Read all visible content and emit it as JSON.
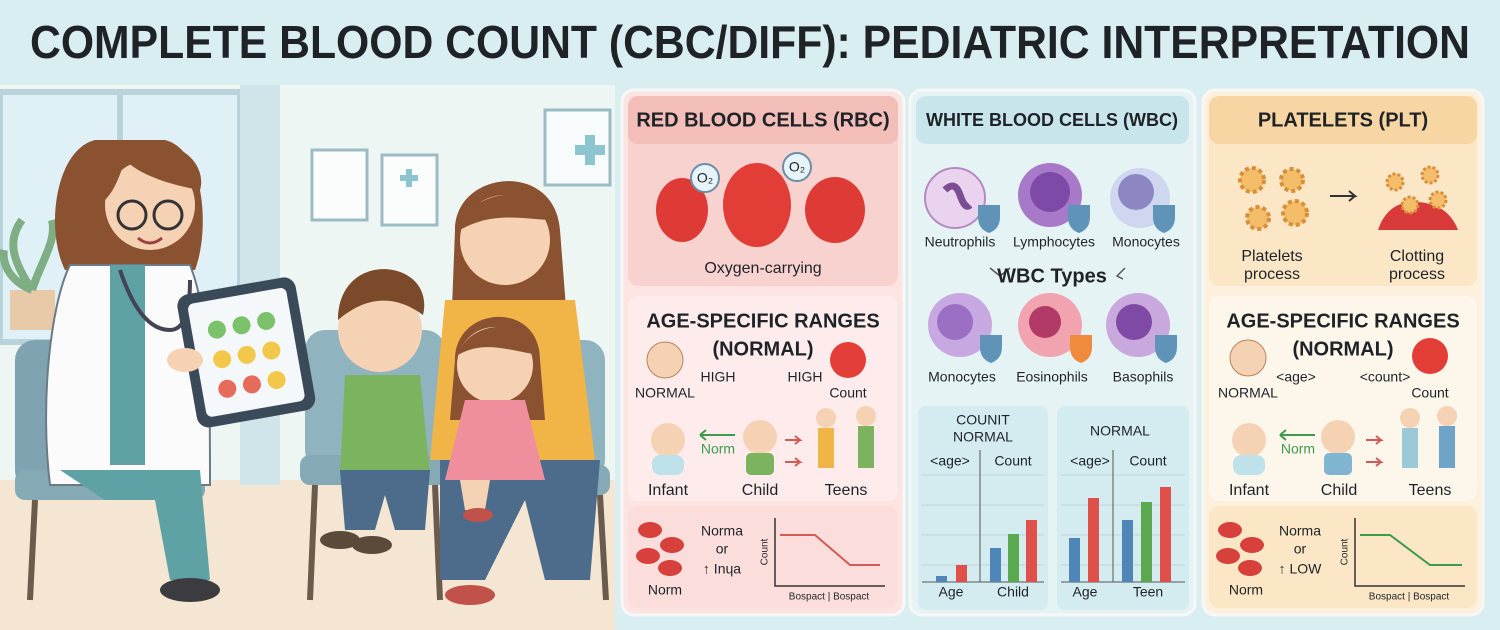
{
  "title": "COMPLETE BLOOD COUNT (CBC/DIFF): PEDIATRIC INTERPRETATION",
  "rbc": {
    "header": "RED BLOOD CELLS (RBC)",
    "o2_labels": [
      "O₂",
      "O₂"
    ],
    "caption": "Oxygen-carrying",
    "ranges": {
      "heading": [
        "AGE-SPECIFIC RANGES",
        "(NORMAL)"
      ],
      "top_left": "HIGH",
      "top_right": "HIGH",
      "left_caption": "NORMAL",
      "right_caption": "Count",
      "arrow_label": "Norm",
      "stages": [
        "Infant",
        "Child",
        "Teens"
      ]
    },
    "trend": {
      "legend": [
        "Norma",
        "or",
        "↑ Inɥa"
      ],
      "caption": "Norm",
      "y_label": "Count",
      "x_label": "Bospact | Bospact"
    }
  },
  "wbc": {
    "header": "WHITE BLOOD CELLS (WBC)",
    "cells_top": [
      "Neutrophils",
      "Lymphocytes",
      "Monocytes"
    ],
    "types_label": "WBC Types",
    "cells_bottom": [
      "Monocytes",
      "Eosinophils",
      "Basophils"
    ],
    "chart_left": {
      "heading": [
        "COUNIT",
        "NORMAL"
      ],
      "columns": [
        "<age>",
        "Count"
      ],
      "x_labels": [
        "Age",
        "Child"
      ]
    },
    "chart_right": {
      "heading": [
        "NORMAL"
      ],
      "columns": [
        "<age>",
        "Count"
      ],
      "x_labels": [
        "Age",
        "Teen"
      ]
    }
  },
  "plt": {
    "header": "PLATELETS (PLT)",
    "steps": [
      [
        "Platelets",
        "process"
      ],
      [
        "Clotting",
        "process"
      ]
    ],
    "ranges": {
      "heading": [
        "AGE-SPECIFIC RANGES",
        "(NORMAL)"
      ],
      "top_left": "<age>",
      "top_right": "<count>",
      "left_caption": "NORMAL",
      "right_caption": "Count",
      "arrow_label": "Norm",
      "stages": [
        "Infant",
        "Child",
        "Teens"
      ]
    },
    "trend": {
      "legend": [
        "Norma",
        "or",
        "↑ LOW"
      ],
      "caption": "Norm",
      "y_label": "Count",
      "x_label": "Bospact | Bospact"
    }
  }
}
